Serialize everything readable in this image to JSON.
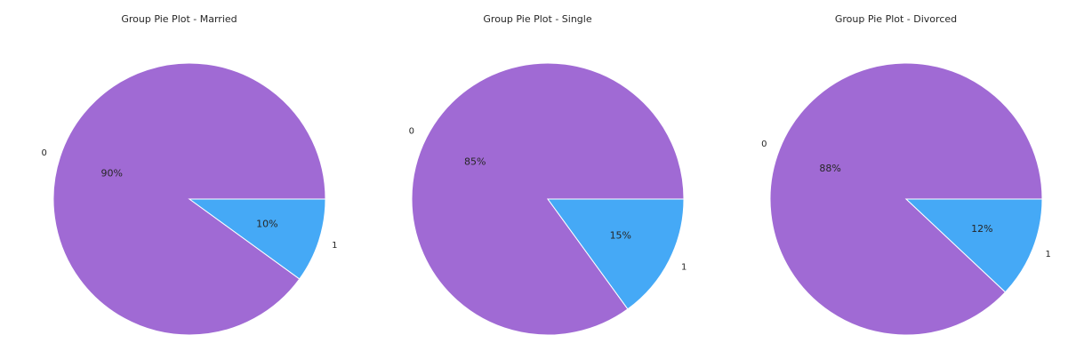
{
  "chart_data": [
    {
      "type": "pie",
      "title": "Group Pie Plot - Married",
      "categories": [
        "0",
        "1"
      ],
      "values": [
        90,
        10
      ],
      "value_labels": [
        "90%",
        "10%"
      ],
      "colors": [
        "#a06ad4",
        "#45a9f6"
      ]
    },
    {
      "type": "pie",
      "title": "Group Pie Plot - Single",
      "categories": [
        "0",
        "1"
      ],
      "values": [
        85,
        15
      ],
      "value_labels": [
        "85%",
        "15%"
      ],
      "colors": [
        "#a06ad4",
        "#45a9f6"
      ]
    },
    {
      "type": "pie",
      "title": "Group Pie Plot - Divorced",
      "categories": [
        "0",
        "1"
      ],
      "values": [
        88,
        12
      ],
      "value_labels": [
        "88%",
        "12%"
      ],
      "colors": [
        "#a06ad4",
        "#45a9f6"
      ]
    }
  ],
  "style": {
    "slice_edge_color": "#ffffff",
    "text_color": "#262626"
  }
}
